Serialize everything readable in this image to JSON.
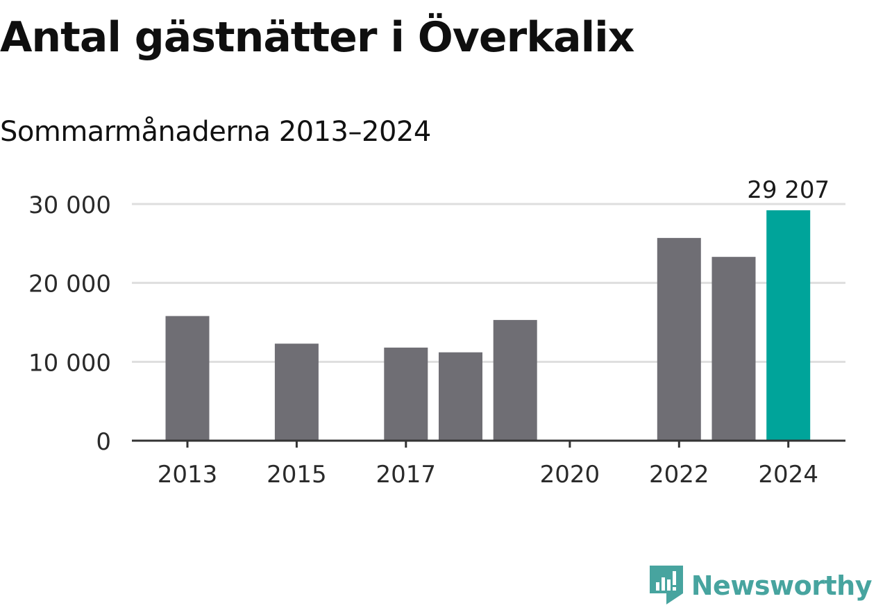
{
  "title": "Antal gästnätter i Överkalix",
  "subtitle": "Sommarmånaderna 2013–2024",
  "brand": "Newsworthy",
  "colors": {
    "bar": "#6f6e74",
    "highlight": "#00a49a",
    "grid": "#dedede",
    "axis": "#333333",
    "brand": "#47a49f"
  },
  "chart_data": {
    "type": "bar",
    "categories": [
      "2013",
      "2014",
      "2015",
      "2016",
      "2017",
      "2018",
      "2019",
      "2020",
      "2021",
      "2022",
      "2023",
      "2024"
    ],
    "values": [
      15800,
      null,
      12300,
      null,
      11800,
      11200,
      15300,
      null,
      null,
      25700,
      23300,
      29207
    ],
    "highlight_index": 11,
    "value_label": "29 207",
    "x_tick_labels": [
      "2013",
      "2015",
      "2017",
      "2020",
      "2022",
      "2024"
    ],
    "y_ticks": [
      0,
      10000,
      20000,
      30000
    ],
    "y_tick_labels": [
      "0",
      "10 000",
      "20 000",
      "30 000"
    ],
    "ylim": [
      0,
      30000
    ],
    "grid": true
  }
}
